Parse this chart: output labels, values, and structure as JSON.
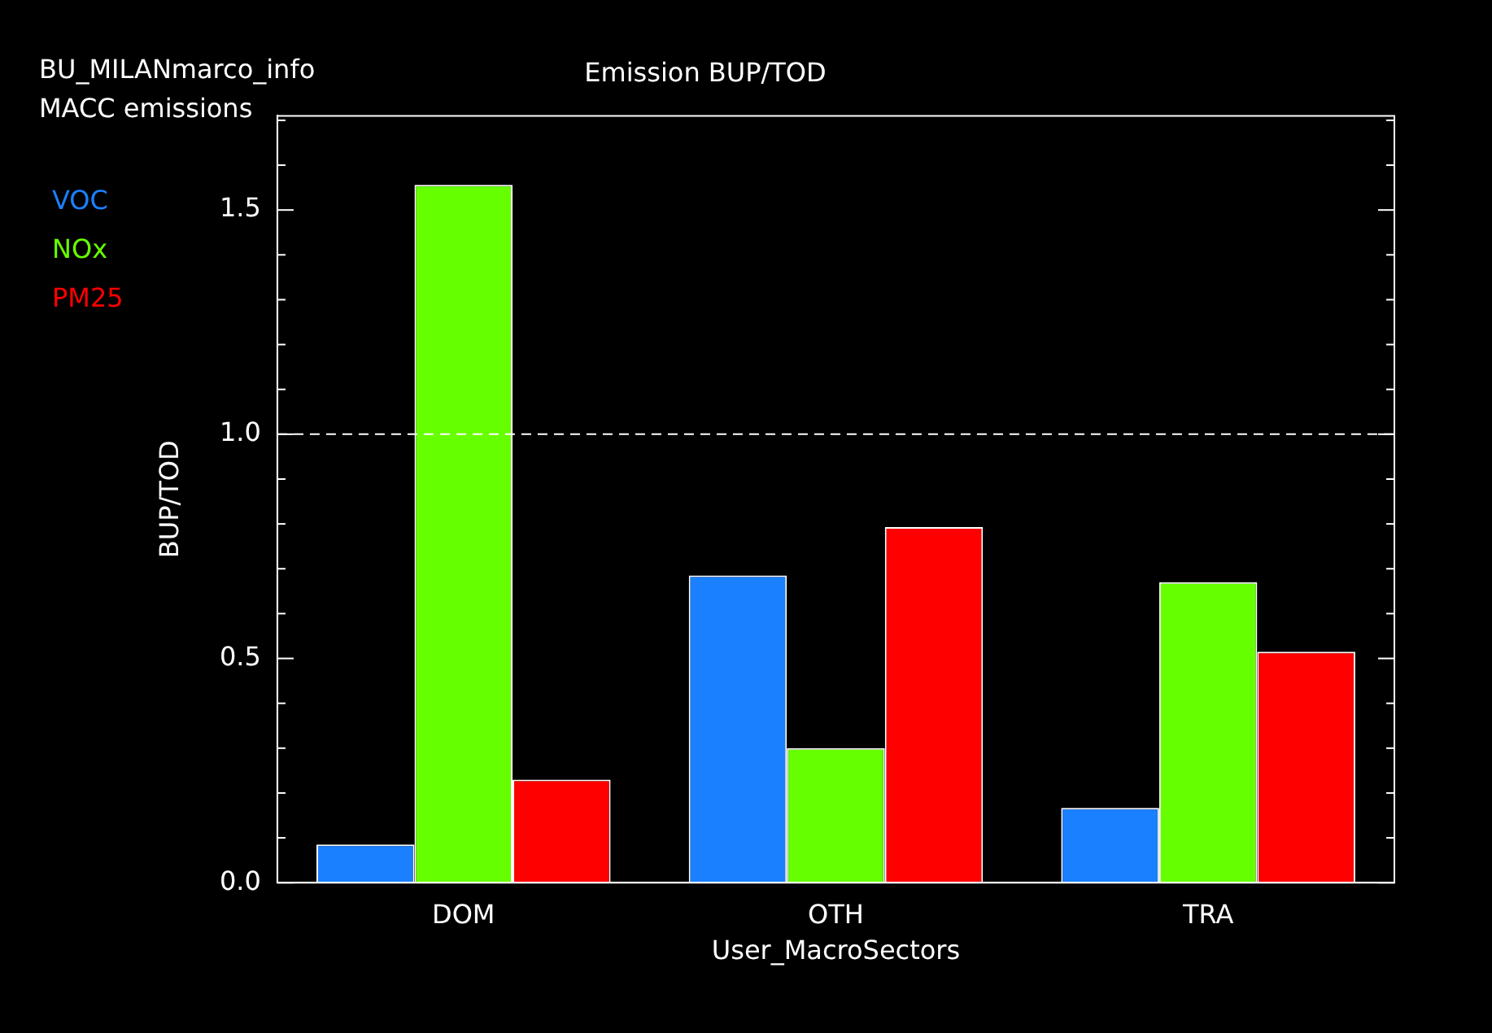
{
  "chart_data": {
    "type": "bar",
    "title": "Emission BUP/TOD",
    "xlabel": "User_MacroSectors",
    "ylabel": "BUP/TOD",
    "annotations": [
      "BU_MILANmarco_info",
      "MACC emissions"
    ],
    "categories": [
      "DOM",
      "OTH",
      "TRA"
    ],
    "series": [
      {
        "name": "VOC",
        "color": "#1a80ff",
        "values": [
          0.085,
          0.685,
          0.167
        ]
      },
      {
        "name": "NOx",
        "color": "#66ff00",
        "values": [
          1.556,
          0.3,
          0.67
        ]
      },
      {
        "name": "PM25",
        "color": "#ff0000",
        "values": [
          0.23,
          0.793,
          0.515
        ]
      }
    ],
    "ylim": [
      0,
      1.71
    ],
    "yticks": [
      {
        "value": 0,
        "label": "0.0"
      },
      {
        "value": 0.1,
        "label": null
      },
      {
        "value": 0.2,
        "label": null
      },
      {
        "value": 0.3,
        "label": null
      },
      {
        "value": 0.4,
        "label": null
      },
      {
        "value": 0.5,
        "label": "0.5"
      },
      {
        "value": 0.6,
        "label": null
      },
      {
        "value": 0.7,
        "label": null
      },
      {
        "value": 0.8,
        "label": null
      },
      {
        "value": 0.9,
        "label": null
      },
      {
        "value": 1,
        "label": "1.0"
      },
      {
        "value": 1.1,
        "label": null
      },
      {
        "value": 1.2,
        "label": null
      },
      {
        "value": 1.3,
        "label": null
      },
      {
        "value": 1.4,
        "label": null
      },
      {
        "value": 1.5,
        "label": "1.5"
      },
      {
        "value": 1.6,
        "label": null
      },
      {
        "value": 1.7,
        "label": null
      }
    ],
    "ref_lines": [
      {
        "axis": "y",
        "value": 1,
        "color": "#ffffff",
        "line_style": "dashed"
      }
    ],
    "grid": false,
    "legend": "left"
  }
}
